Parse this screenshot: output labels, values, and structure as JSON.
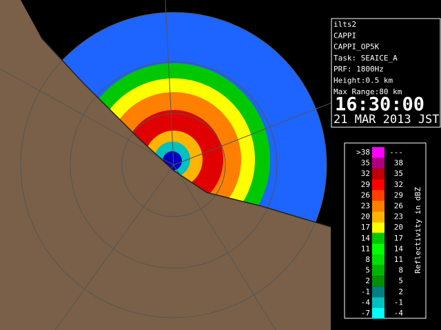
{
  "info_panel": {
    "lines": [
      "ilts2",
      "CAPPI",
      "CAPPI_OP5K",
      "Task: SEAICE_A",
      "PRF: 1800Hz",
      "Height:0.5 km",
      "Max Range:80 km"
    ],
    "time": "16:30:00",
    "date": "21 MAR 2013 JST"
  },
  "legend": {
    "title": "Reflectivity in dBZ",
    "rows": [
      {
        "low": ">38",
        "high": "---",
        "color": "#ff00ff"
      },
      {
        "low": "35",
        "high": "38",
        "color": "#b0007f"
      },
      {
        "low": "32",
        "high": "35",
        "color": "#c00000"
      },
      {
        "low": "29",
        "high": "32",
        "color": "#ff0000"
      },
      {
        "low": "26",
        "high": "29",
        "color": "#ff4000"
      },
      {
        "low": "23",
        "high": "26",
        "color": "#ff8000"
      },
      {
        "low": "20",
        "high": "23",
        "color": "#ffb400"
      },
      {
        "low": "17",
        "high": "20",
        "color": "#ffff00"
      },
      {
        "low": "14",
        "high": "17",
        "color": "#00c800"
      },
      {
        "low": "11",
        "high": "14",
        "color": "#00ff00"
      },
      {
        "low": "8",
        "high": "11",
        "color": "#00e000"
      },
      {
        "low": "5",
        "high": "8",
        "color": "#00b400"
      },
      {
        "low": "2",
        "high": "5",
        "color": "#009000"
      },
      {
        "low": "-1",
        "high": "2",
        "color": "#008080"
      },
      {
        "low": "-4",
        "high": "-1",
        "color": "#00c0c0"
      },
      {
        "low": "-7",
        "high": "-4",
        "color": "#00ffff"
      }
    ]
  }
}
